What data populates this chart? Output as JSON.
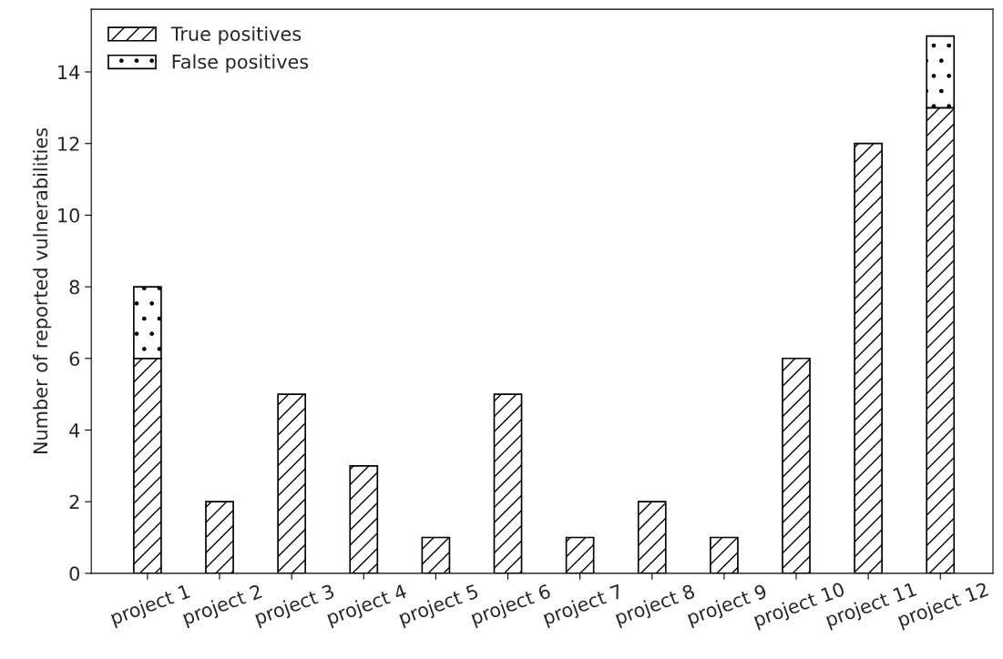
{
  "chart_data": {
    "type": "bar",
    "ylabel": "Number of reported vulnerabilities",
    "categories": [
      "project 1",
      "project 2",
      "project 3",
      "project 4",
      "project 5",
      "project 6",
      "project 7",
      "project 8",
      "project 9",
      "project 10",
      "project 11",
      "project 12"
    ],
    "stacked": true,
    "series": [
      {
        "name": "True positives",
        "color": "#000000",
        "values": [
          6,
          2,
          5,
          3,
          1,
          5,
          1,
          2,
          1,
          6,
          12,
          13
        ]
      },
      {
        "name": "False positives",
        "color": "#000000",
        "values": [
          2,
          null,
          null,
          null,
          null,
          null,
          null,
          null,
          null,
          null,
          null,
          2
        ]
      }
    ],
    "ylim": [
      0,
      15.75
    ],
    "yticks": [
      0,
      2,
      4,
      6,
      8,
      10,
      12,
      14
    ],
    "grid": false,
    "legend": "top left"
  }
}
